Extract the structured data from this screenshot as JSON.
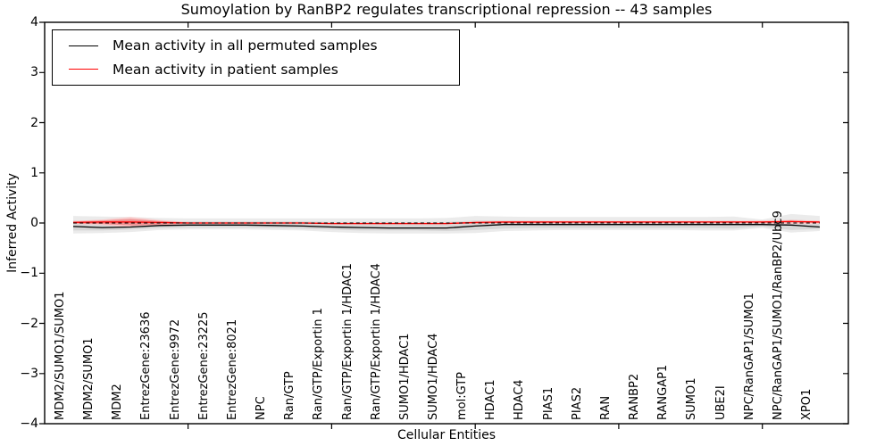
{
  "figure": {
    "title": "Sumoylation by RanBP2 regulates transcriptional repression -- 43 samples",
    "xlabel": "Cellular Entities",
    "ylabel": "Inferred Activity"
  },
  "legend": {
    "items": [
      {
        "label": "Mean activity in all permuted samples",
        "color": "#000000"
      },
      {
        "label": "Mean activity in patient samples",
        "color": "#ff0000"
      }
    ],
    "position": "upper left"
  },
  "chart_data": {
    "type": "line",
    "title": "Sumoylation by RanBP2 regulates transcriptional repression -- 43 samples",
    "xlabel": "Cellular Entities",
    "ylabel": "Inferred Activity",
    "ylim": [
      -4,
      4
    ],
    "yticks": [
      4,
      3,
      2,
      1,
      0,
      -1,
      -2,
      -3,
      -4
    ],
    "ytick_labels": [
      "4",
      "3",
      "2",
      "1",
      "0",
      "−1",
      "−2",
      "−3",
      "−4"
    ],
    "grid": false,
    "legend_position": "upper left",
    "xtick_marks_at_indices": [
      4,
      9,
      14,
      19,
      24
    ],
    "categories": [
      "MDM2/SUMO1/SUMO1",
      "MDM2/SUMO1",
      "MDM2",
      "EntrezGene:23636",
      "EntrezGene:9972",
      "EntrezGene:23225",
      "EntrezGene:8021",
      "NPC",
      "Ran/GTP",
      "Ran/GTP/Exportin 1",
      "Ran/GTP/Exportin 1/HDAC1",
      "Ran/GTP/Exportin 1/HDAC4",
      "SUMO1/HDAC1",
      "SUMO1/HDAC4",
      "mol:GTP",
      "HDAC1",
      "HDAC4",
      "PIAS1",
      "PIAS2",
      "RAN",
      "RANBP2",
      "RANGAP1",
      "SUMO1",
      "UBE2I",
      "NPC/RanGAP1/SUMO1",
      "NPC/RanGAP1/SUMO1/RanBP2/Ubc9",
      "XPO1"
    ],
    "series": [
      {
        "name": "Mean activity in all permuted samples",
        "color": "#000000",
        "style": "solid",
        "values": [
          -0.07,
          -0.09,
          -0.08,
          -0.05,
          -0.04,
          -0.04,
          -0.04,
          -0.05,
          -0.06,
          -0.08,
          -0.09,
          -0.1,
          -0.1,
          -0.1,
          -0.06,
          -0.03,
          -0.03,
          -0.03,
          -0.03,
          -0.03,
          -0.03,
          -0.03,
          -0.03,
          -0.03,
          -0.03,
          -0.04,
          -0.08
        ]
      },
      {
        "name": "Mean activity in patient samples",
        "color": "#ff0000",
        "style": "solid",
        "values": [
          0.01,
          0.02,
          0.02,
          0.01,
          0.0,
          0.0,
          0.0,
          0.0,
          0.0,
          -0.01,
          -0.01,
          -0.01,
          -0.01,
          -0.01,
          0.01,
          0.02,
          0.02,
          0.02,
          0.02,
          0.02,
          0.02,
          0.02,
          0.02,
          0.02,
          0.02,
          0.03,
          0.02
        ]
      }
    ],
    "zero_line": {
      "value": 0,
      "color": "#000000",
      "style": "dashed"
    },
    "bands": [
      {
        "name": "permuted-outer",
        "color": "#ebebeb",
        "hi": [
          0.14,
          0.13,
          0.12,
          0.1,
          0.09,
          0.09,
          0.09,
          0.09,
          0.09,
          0.09,
          0.09,
          0.09,
          0.09,
          0.1,
          0.14,
          0.13,
          0.12,
          0.12,
          0.12,
          0.12,
          0.12,
          0.12,
          0.12,
          0.13,
          0.07,
          0.18,
          0.14
        ],
        "lo": [
          -0.21,
          -0.2,
          -0.18,
          -0.14,
          -0.13,
          -0.13,
          -0.13,
          -0.14,
          -0.15,
          -0.18,
          -0.2,
          -0.21,
          -0.21,
          -0.21,
          -0.2,
          -0.16,
          -0.15,
          -0.14,
          -0.14,
          -0.14,
          -0.14,
          -0.14,
          -0.15,
          -0.15,
          -0.1,
          -0.19,
          -0.16
        ]
      },
      {
        "name": "permuted-inner",
        "color": "#d7d7d7",
        "hi": [
          0.05,
          0.04,
          0.04,
          0.03,
          0.03,
          0.03,
          0.03,
          0.03,
          0.03,
          0.02,
          0.02,
          0.02,
          0.02,
          0.02,
          0.05,
          0.05,
          0.05,
          0.04,
          0.04,
          0.04,
          0.04,
          0.04,
          0.04,
          0.05,
          0.02,
          0.07,
          0.04
        ],
        "lo": [
          -0.15,
          -0.15,
          -0.13,
          -0.1,
          -0.09,
          -0.09,
          -0.09,
          -0.1,
          -0.11,
          -0.13,
          -0.15,
          -0.15,
          -0.15,
          -0.16,
          -0.14,
          -0.11,
          -0.1,
          -0.1,
          -0.1,
          -0.1,
          -0.1,
          -0.1,
          -0.1,
          -0.11,
          -0.07,
          -0.14,
          -0.12
        ]
      },
      {
        "name": "patient-outer",
        "color": "#f7cccc",
        "hi": [
          0.04,
          0.07,
          0.12,
          0.06,
          0.02,
          0.02,
          0.02,
          0.02,
          0.02,
          0.01,
          0.01,
          0.01,
          0.01,
          0.01,
          0.03,
          0.04,
          0.04,
          0.04,
          0.04,
          0.04,
          0.04,
          0.04,
          0.04,
          0.04,
          0.05,
          0.06,
          0.05
        ],
        "lo": [
          -0.02,
          -0.04,
          -0.09,
          -0.05,
          -0.02,
          -0.02,
          -0.02,
          -0.02,
          -0.02,
          -0.03,
          -0.03,
          -0.03,
          -0.03,
          -0.03,
          -0.02,
          -0.01,
          -0.01,
          -0.01,
          -0.01,
          -0.01,
          -0.01,
          -0.01,
          -0.01,
          -0.01,
          -0.01,
          -0.02,
          -0.02
        ]
      },
      {
        "name": "patient-inner",
        "color": "#f09393",
        "hi": [
          0.03,
          0.05,
          0.08,
          0.04,
          0.01,
          0.01,
          0.01,
          0.01,
          0.01,
          0.0,
          0.0,
          0.0,
          0.0,
          0.0,
          0.02,
          0.03,
          0.03,
          0.03,
          0.03,
          0.03,
          0.03,
          0.03,
          0.03,
          0.03,
          0.03,
          0.04,
          0.03
        ],
        "lo": [
          -0.01,
          -0.02,
          -0.05,
          -0.03,
          -0.01,
          -0.01,
          -0.01,
          -0.01,
          -0.01,
          -0.02,
          -0.02,
          -0.02,
          -0.02,
          -0.02,
          -0.01,
          0.0,
          0.0,
          0.01,
          0.01,
          0.01,
          0.01,
          0.01,
          0.01,
          0.01,
          0.01,
          0.01,
          0.0
        ]
      }
    ]
  }
}
